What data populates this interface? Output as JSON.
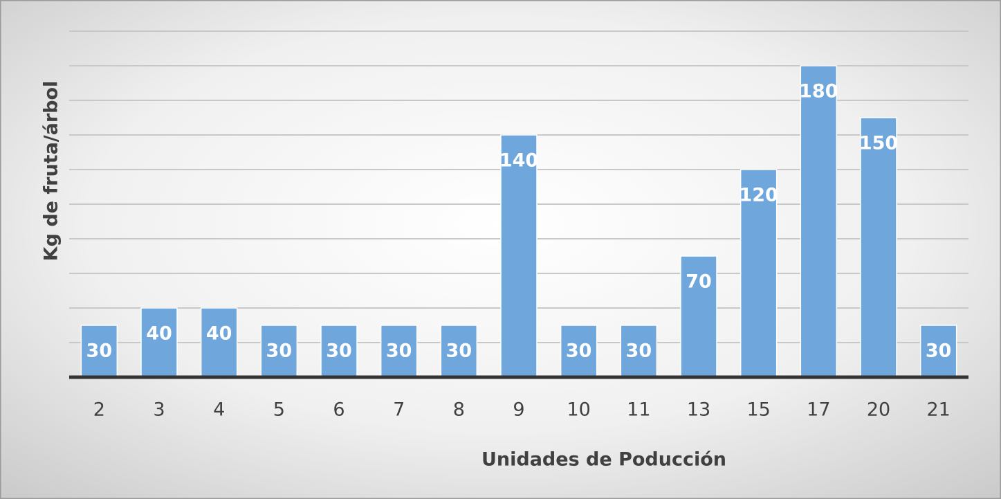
{
  "chart_data": {
    "type": "bar",
    "x_label": "Unidades de Poducción",
    "y_label": "Kg de fruta/árbol",
    "categories": [
      "2",
      "3",
      "4",
      "5",
      "6",
      "7",
      "8",
      "9",
      "10",
      "11",
      "13",
      "15",
      "17",
      "20",
      "21"
    ],
    "values": [
      30,
      40,
      40,
      30,
      30,
      30,
      30,
      140,
      30,
      30,
      70,
      120,
      180,
      150,
      30
    ],
    "color": "#6fa6dc",
    "ylim": [
      0,
      200
    ],
    "yticks": [
      0,
      20,
      40,
      60,
      80,
      100,
      120,
      140,
      160,
      180,
      200
    ],
    "grid": true,
    "data_labels": true
  }
}
